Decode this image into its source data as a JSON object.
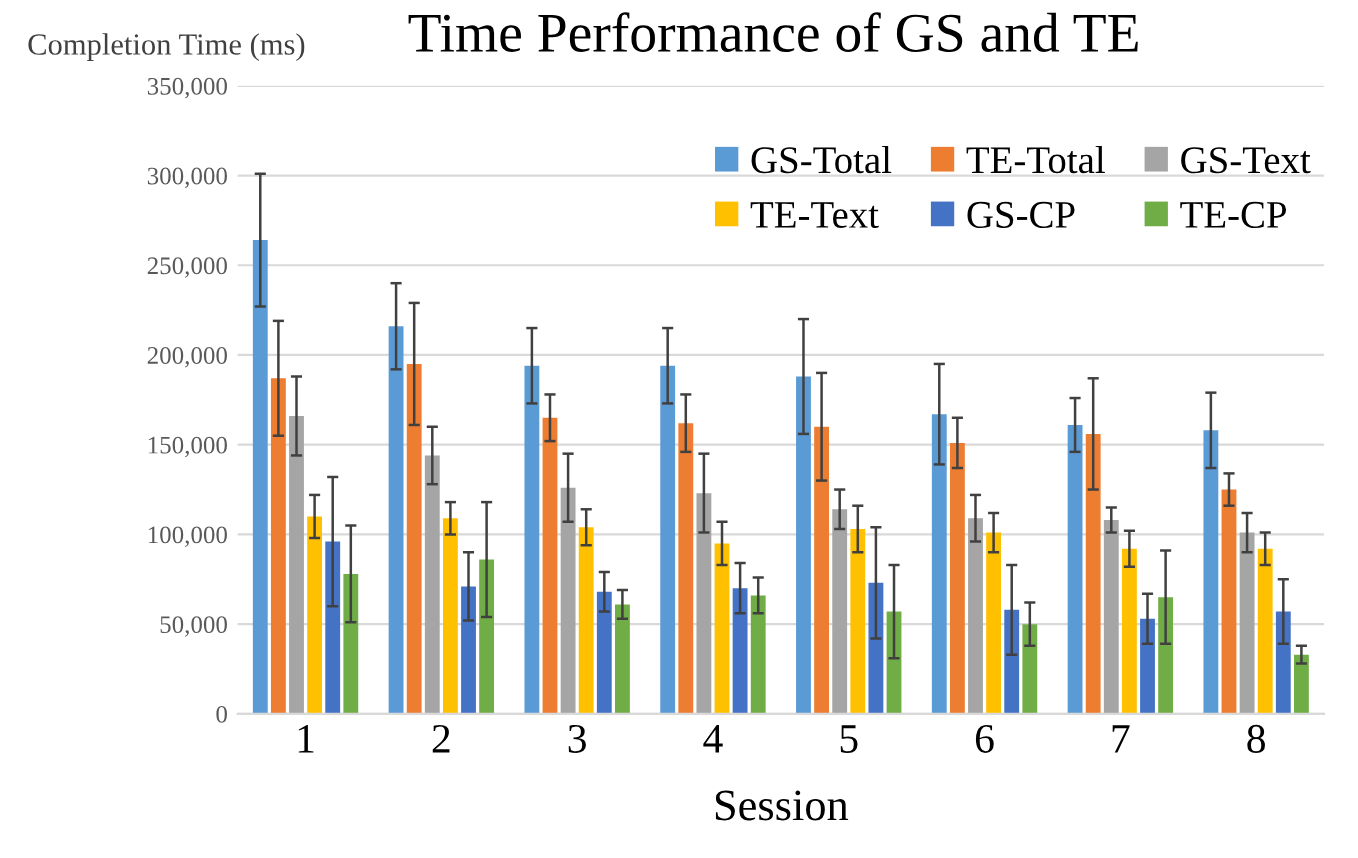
{
  "chart_data": {
    "type": "bar",
    "title": "Time Performance of GS and TE",
    "xlabel": "Session",
    "ylabel": "Completion Time (ms)",
    "categories": [
      "1",
      "2",
      "3",
      "4",
      "5",
      "6",
      "7",
      "8"
    ],
    "series": [
      {
        "name": "GS-Total",
        "color": "#5b9bd5",
        "values": [
          264000,
          216000,
          194000,
          194000,
          188000,
          167000,
          161000,
          158000
        ],
        "errors": [
          37000,
          24000,
          21000,
          21000,
          32000,
          28000,
          15000,
          21000
        ]
      },
      {
        "name": "TE-Total",
        "color": "#ed7d31",
        "values": [
          187000,
          195000,
          165000,
          162000,
          160000,
          151000,
          156000,
          125000
        ],
        "errors": [
          32000,
          34000,
          13000,
          16000,
          30000,
          14000,
          31000,
          9000
        ]
      },
      {
        "name": "GS-Text",
        "color": "#a5a5a5",
        "values": [
          166000,
          144000,
          126000,
          123000,
          114000,
          109000,
          108000,
          101000
        ],
        "errors": [
          22000,
          16000,
          19000,
          22000,
          11000,
          13000,
          7000,
          11000
        ]
      },
      {
        "name": "TE-Text",
        "color": "#ffc000",
        "values": [
          110000,
          109000,
          104000,
          95000,
          103000,
          101000,
          92000,
          92000
        ],
        "errors": [
          12000,
          9000,
          10000,
          12000,
          13000,
          11000,
          10000,
          9000
        ]
      },
      {
        "name": "GS-CP",
        "color": "#4472c4",
        "values": [
          96000,
          71000,
          68000,
          70000,
          73000,
          58000,
          53000,
          57000
        ],
        "errors": [
          36000,
          19000,
          11000,
          14000,
          31000,
          25000,
          14000,
          18000
        ]
      },
      {
        "name": "TE-CP",
        "color": "#70ad47",
        "values": [
          78000,
          86000,
          61000,
          66000,
          57000,
          50000,
          65000,
          33000
        ],
        "errors": [
          27000,
          32000,
          8000,
          10000,
          26000,
          12000,
          26000,
          5000
        ]
      }
    ],
    "ylim": [
      0,
      350000
    ],
    "yticks": [
      {
        "value": 0,
        "label": "0"
      },
      {
        "value": 50000,
        "label": "50,000"
      },
      {
        "value": 100000,
        "label": "100,000"
      },
      {
        "value": 150000,
        "label": "150,000"
      },
      {
        "value": 200000,
        "label": "200,000"
      },
      {
        "value": 250000,
        "label": "250,000"
      },
      {
        "value": 300000,
        "label": "300,000"
      },
      {
        "value": 350000,
        "label": "350,000"
      }
    ],
    "grid": "y",
    "legend": "top right"
  }
}
